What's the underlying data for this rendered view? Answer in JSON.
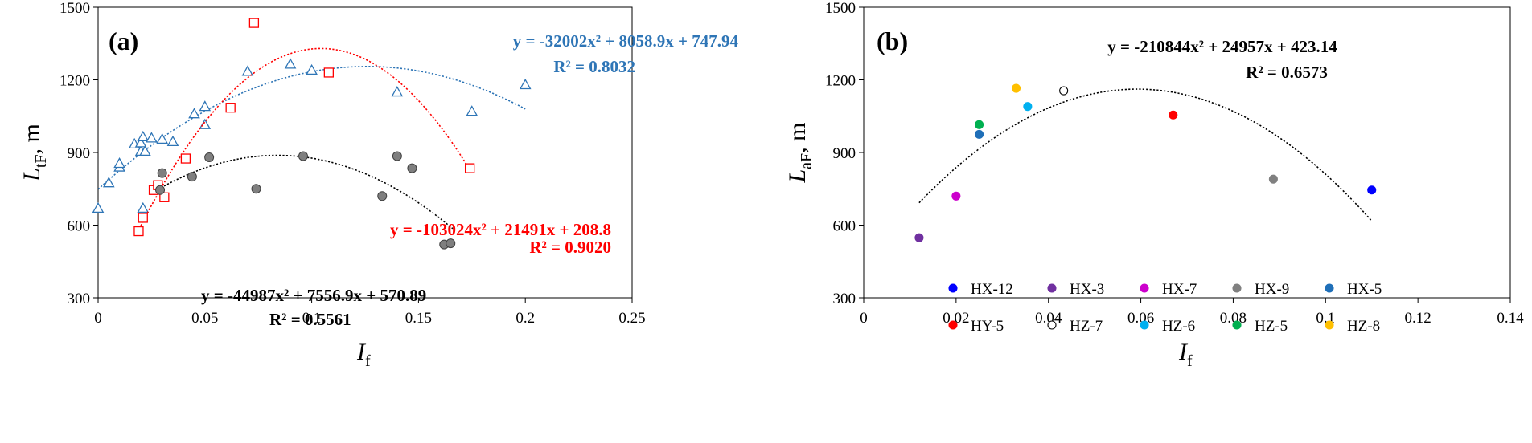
{
  "chart_data": [
    {
      "type": "scatter",
      "panel_label": "(a)",
      "xlabel": {
        "main": "I",
        "sub": "f"
      },
      "ylabel": {
        "main": "L",
        "sub": "tF",
        "unit": ", m"
      },
      "xlim": [
        0,
        0.25
      ],
      "ylim": [
        300,
        1500
      ],
      "xticks": [
        0,
        0.05,
        0.1,
        0.15,
        0.2,
        0.25
      ],
      "xtick_labels": [
        "0",
        "0.05",
        "0.1",
        "0.15",
        "0.2",
        "0.25"
      ],
      "yticks": [
        300,
        600,
        900,
        1200,
        1500
      ],
      "ytick_labels": [
        "300",
        "600",
        "900",
        "1200",
        "1500"
      ],
      "series": [
        {
          "name": "triangles",
          "marker": "triangle",
          "color": "#2E75B6",
          "fit_color": "#2E75B6",
          "fit": {
            "a": -32002,
            "b": 8058.9,
            "c": 747.94,
            "x_range": [
              0,
              0.2
            ]
          },
          "equation": "y = -32002x² + 8058.9x + 747.94",
          "r2": "R² = 0.8032",
          "points": [
            [
              0.0,
              670
            ],
            [
              0.005,
              775
            ],
            [
              0.01,
              840
            ],
            [
              0.01,
              855
            ],
            [
              0.017,
              935
            ],
            [
              0.02,
              905
            ],
            [
              0.02,
              940
            ],
            [
              0.021,
              965
            ],
            [
              0.022,
              905
            ],
            [
              0.021,
              670
            ],
            [
              0.025,
              960
            ],
            [
              0.03,
              955
            ],
            [
              0.035,
              945
            ],
            [
              0.045,
              1060
            ],
            [
              0.05,
              1015
            ],
            [
              0.05,
              1090
            ],
            [
              0.07,
              1235
            ],
            [
              0.09,
              1265
            ],
            [
              0.1,
              1240
            ],
            [
              0.14,
              1150
            ],
            [
              0.175,
              1070
            ],
            [
              0.2,
              1180
            ]
          ]
        },
        {
          "name": "squares",
          "marker": "square",
          "color": "#FF0000",
          "fit_color": "#FF0000",
          "fit": {
            "a": -103024,
            "b": 21491,
            "c": 208.8,
            "x_range": [
              0.02,
              0.174
            ]
          },
          "equation": "y = -103024x² + 21491x + 208.8",
          "r2": "R² = 0.9020",
          "points": [
            [
              0.019,
              575
            ],
            [
              0.021,
              630
            ],
            [
              0.026,
              745
            ],
            [
              0.028,
              765
            ],
            [
              0.031,
              715
            ],
            [
              0.041,
              875
            ],
            [
              0.062,
              1085
            ],
            [
              0.073,
              1435
            ],
            [
              0.108,
              1230
            ],
            [
              0.174,
              835
            ]
          ]
        },
        {
          "name": "circles",
          "marker": "circle",
          "color": "#7F7F7F",
          "fit_color": "#000000",
          "fit": {
            "a": -44987,
            "b": 7556.9,
            "c": 570.89,
            "x_range": [
              0.028,
              0.166
            ]
          },
          "equation": "y = -44987x² + 7556.9x + 570.89",
          "r2": "R² = 0.5561",
          "points": [
            [
              0.029,
              745
            ],
            [
              0.03,
              815
            ],
            [
              0.044,
              800
            ],
            [
              0.052,
              880
            ],
            [
              0.074,
              750
            ],
            [
              0.096,
              885
            ],
            [
              0.133,
              720
            ],
            [
              0.14,
              885
            ],
            [
              0.147,
              835
            ],
            [
              0.162,
              520
            ],
            [
              0.165,
              525
            ]
          ]
        }
      ]
    },
    {
      "type": "scatter",
      "panel_label": "(b)",
      "xlabel": {
        "main": "I",
        "sub": "f"
      },
      "ylabel": {
        "main": "L",
        "sub": "aF",
        "unit": ", m"
      },
      "xlim": [
        0,
        0.14
      ],
      "ylim": [
        300,
        1500
      ],
      "xticks": [
        0,
        0.02,
        0.04,
        0.06,
        0.08,
        0.1,
        0.12,
        0.14
      ],
      "xtick_labels": [
        "0",
        "0.02",
        "0.04",
        "0.06",
        "0.08",
        "0.1",
        "0.12",
        "0.14"
      ],
      "yticks": [
        300,
        600,
        900,
        1200,
        1500
      ],
      "ytick_labels": [
        "300",
        "600",
        "900",
        "1200",
        "1500"
      ],
      "fit": {
        "a": -210844,
        "b": 24957,
        "c": 423.14,
        "x_range": [
          0.012,
          0.11
        ],
        "color": "#000000"
      },
      "equation": "y = -210844x² + 24957x + 423.14",
      "r2": "R² = 0.6573",
      "series": [
        {
          "name": "HX-12",
          "color": "#0000FF",
          "hollow": false,
          "points": [
            [
              0.11,
              745
            ]
          ]
        },
        {
          "name": "HX-3",
          "color": "#7030A0",
          "hollow": false,
          "points": [
            [
              0.012,
              548
            ]
          ]
        },
        {
          "name": "HX-7",
          "color": "#CC00CC",
          "hollow": false,
          "points": [
            [
              0.02,
              720
            ]
          ]
        },
        {
          "name": "HX-9",
          "color": "#808080",
          "hollow": false,
          "points": [
            [
              0.0887,
              790
            ]
          ]
        },
        {
          "name": "HX-5",
          "color": "#1F6FB8",
          "hollow": false,
          "points": [
            [
              0.025,
              975
            ]
          ]
        },
        {
          "name": "HY-5",
          "color": "#FF0000",
          "hollow": false,
          "points": [
            [
              0.067,
              1055
            ]
          ]
        },
        {
          "name": "HZ-7",
          "color": "#000000",
          "hollow": true,
          "points": [
            [
              0.0433,
              1155
            ]
          ]
        },
        {
          "name": "HZ-6",
          "color": "#00B0F0",
          "hollow": false,
          "points": [
            [
              0.0355,
              1090
            ]
          ]
        },
        {
          "name": "HZ-5",
          "color": "#00B050",
          "hollow": false,
          "points": [
            [
              0.025,
              1015
            ]
          ]
        },
        {
          "name": "HZ-8",
          "color": "#FFC000",
          "hollow": false,
          "points": [
            [
              0.033,
              1165
            ]
          ]
        }
      ]
    }
  ]
}
